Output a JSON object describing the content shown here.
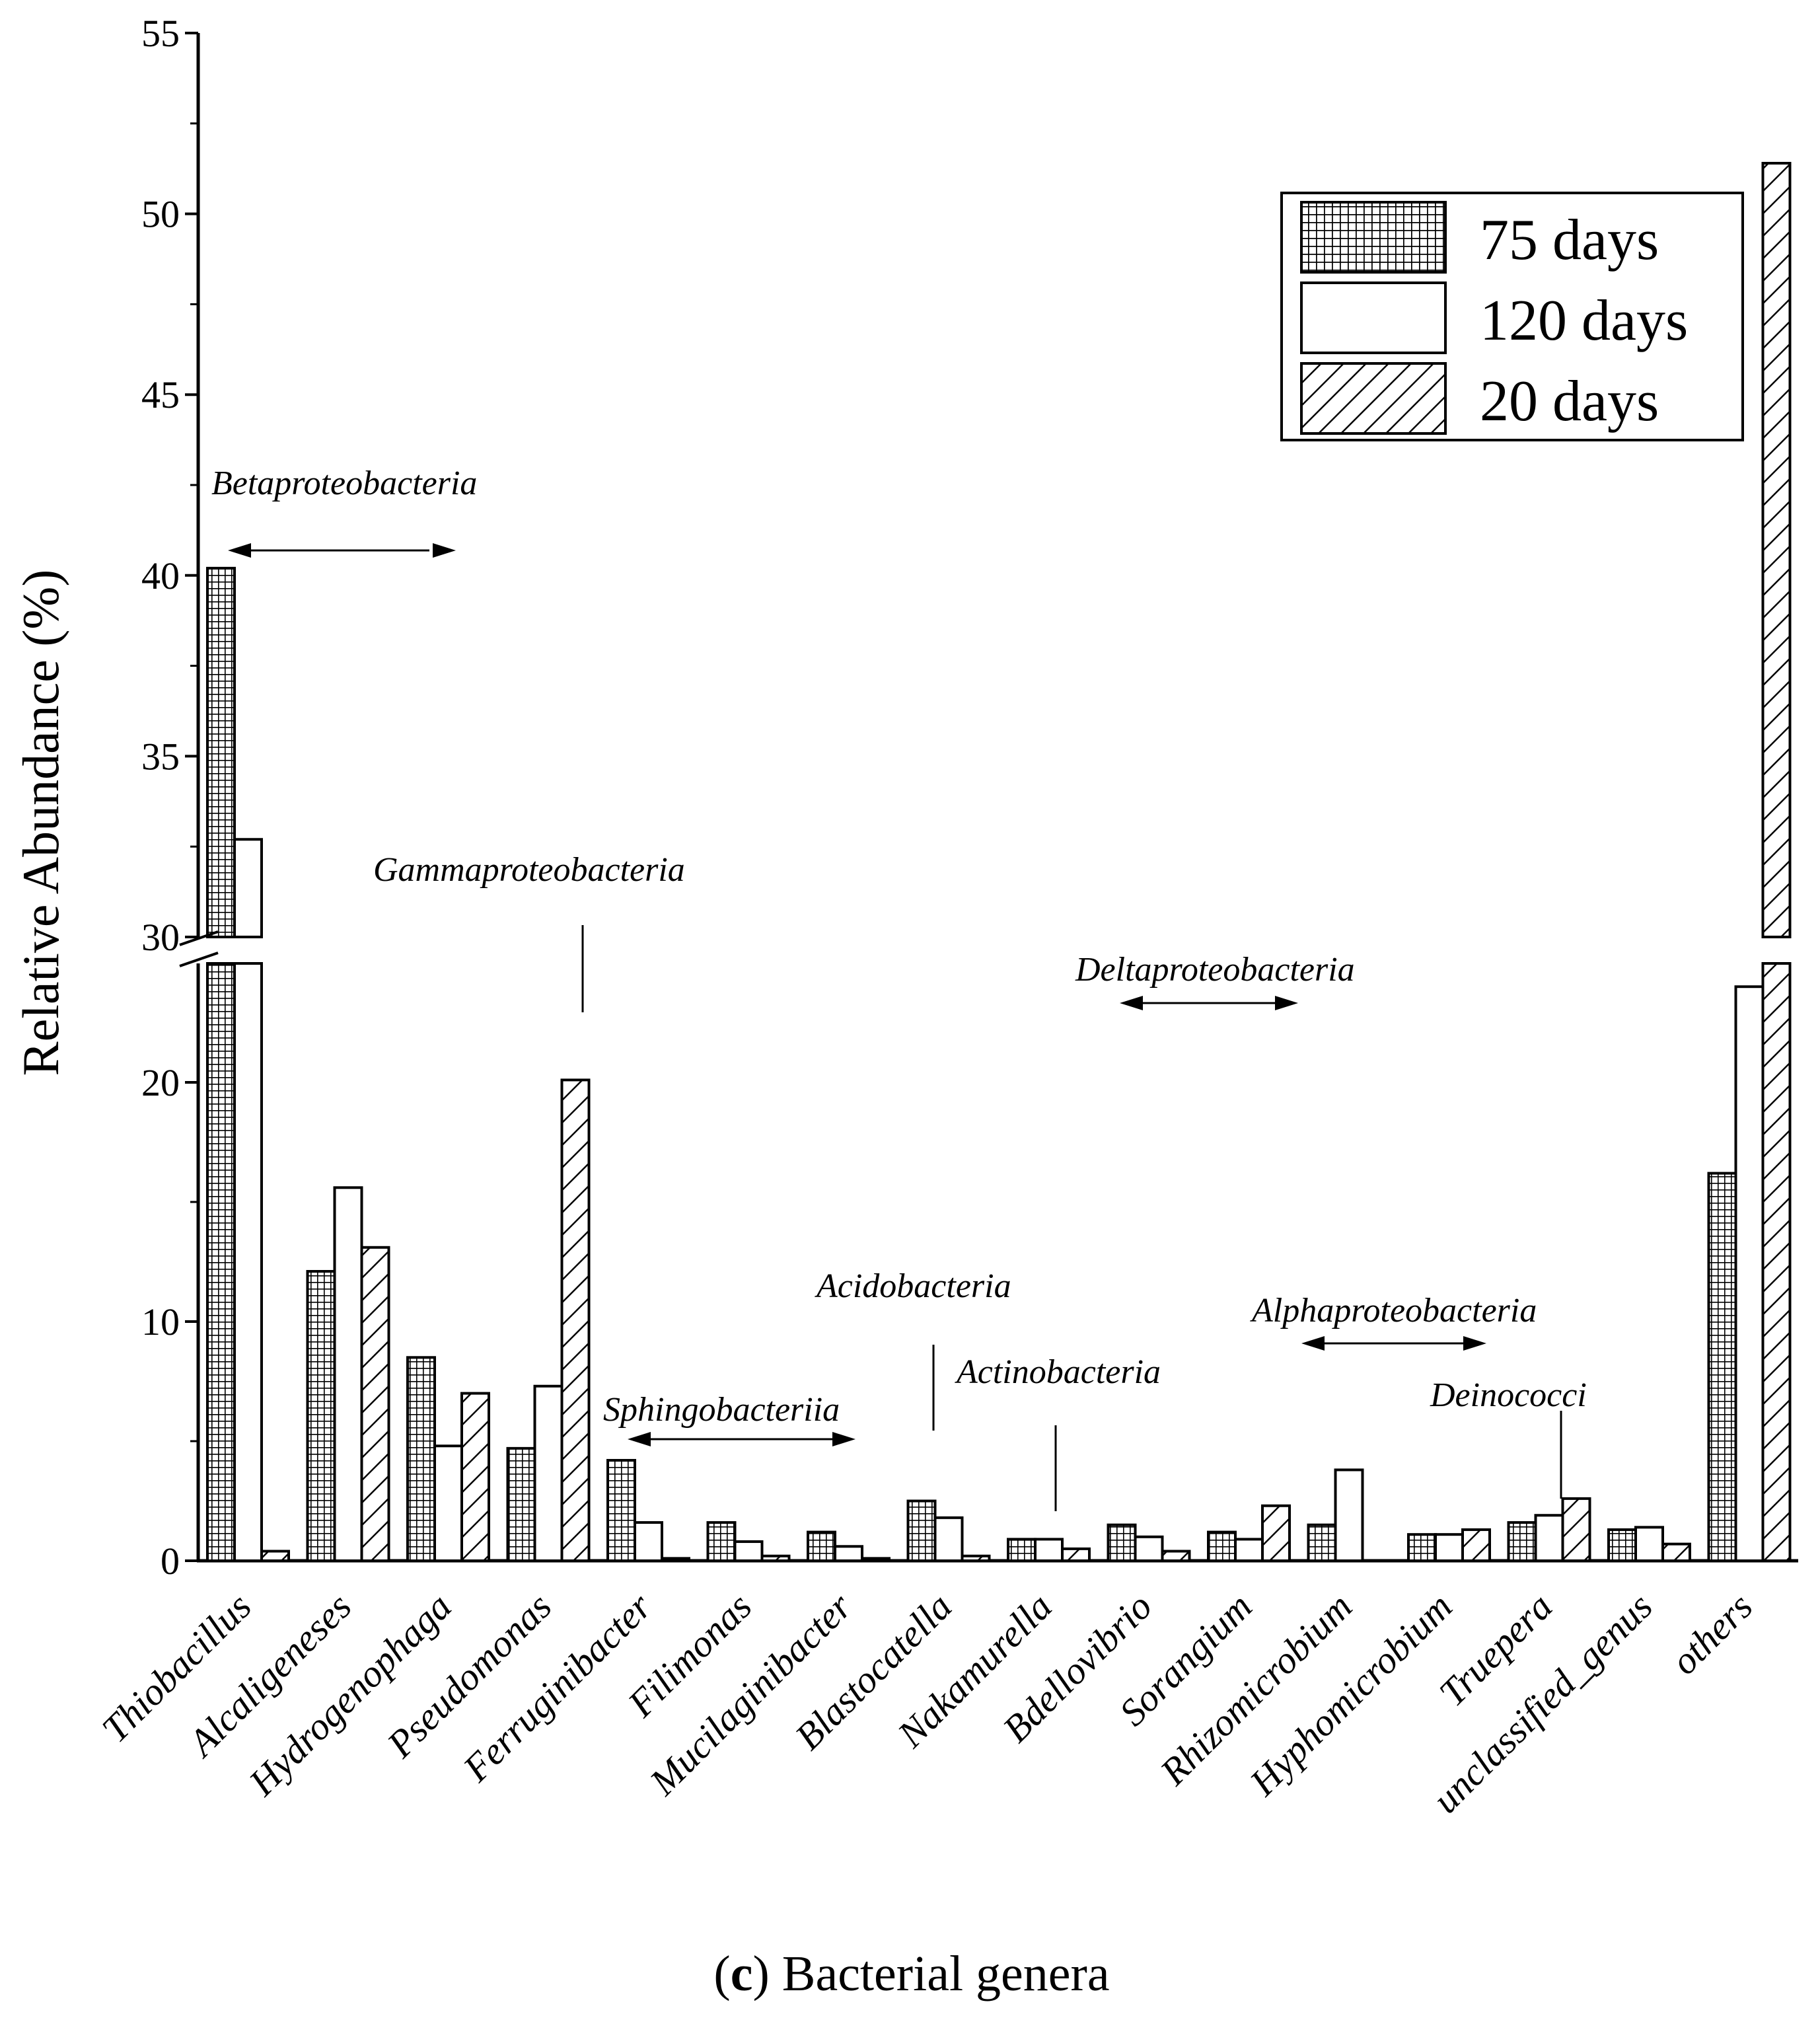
{
  "chart_data": {
    "type": "bar",
    "title": "",
    "xlabel_prefix": "(",
    "xlabel_bold": "c",
    "xlabel_suffix": ") Bacterial genera",
    "ylabel": "Relative Abundance (%)",
    "axis_break": {
      "lower": [
        0,
        24
      ],
      "upper": [
        30,
        55
      ]
    },
    "yticks": [
      0,
      10,
      20,
      30,
      35,
      40,
      45,
      50,
      55
    ],
    "categories": [
      "Thiobacillus",
      "Alcaligeneses",
      "Hydrogenophaga",
      "Pseudomonas",
      "Ferruginibacter",
      "Filimonas",
      "Mucilaginibacter",
      "Blastocatella",
      "Nakamurella",
      "Bdellovibrio",
      "Sorangium",
      "Rhizomicrobium",
      "Hyphomicrobium",
      "Truepera",
      "unclassified_genus",
      "others"
    ],
    "series": [
      {
        "name": "75 days",
        "pattern": "grid",
        "values": [
          40.2,
          12.1,
          8.5,
          4.7,
          4.2,
          1.6,
          1.2,
          2.5,
          0.9,
          1.5,
          1.2,
          1.5,
          1.1,
          1.6,
          1.3,
          16.2
        ]
      },
      {
        "name": "120 days",
        "pattern": "plain",
        "values": [
          32.7,
          15.6,
          4.8,
          7.3,
          1.6,
          0.8,
          0.6,
          1.8,
          0.9,
          1.0,
          0.9,
          3.8,
          1.1,
          1.9,
          1.4,
          24.1
        ]
      },
      {
        "name": "20 days",
        "pattern": "hatch",
        "values": [
          0.4,
          13.1,
          7.0,
          20.1,
          0.1,
          0.2,
          0.1,
          0.2,
          0.5,
          0.4,
          2.3,
          0.0,
          1.3,
          2.6,
          0.7,
          51.4
        ]
      }
    ],
    "legend": {
      "position": "top-right",
      "entries": [
        "75 days",
        "120 days",
        "20 days"
      ]
    },
    "annotations": {
      "betaproteobacteria": "Betaproteobacteria",
      "gammaproteobacteria": "Gammaproteobacteria",
      "deltaproteobacteria": "Deltaproteobacteria",
      "acidobacteria": "Acidobacteria",
      "alphaproteobacteria": "Alphaproteobacteria",
      "actinobacteria": "Actinobacteria",
      "sphingobacteriia": "Sphingobacteriia",
      "deinococci": "Deinococci"
    }
  }
}
